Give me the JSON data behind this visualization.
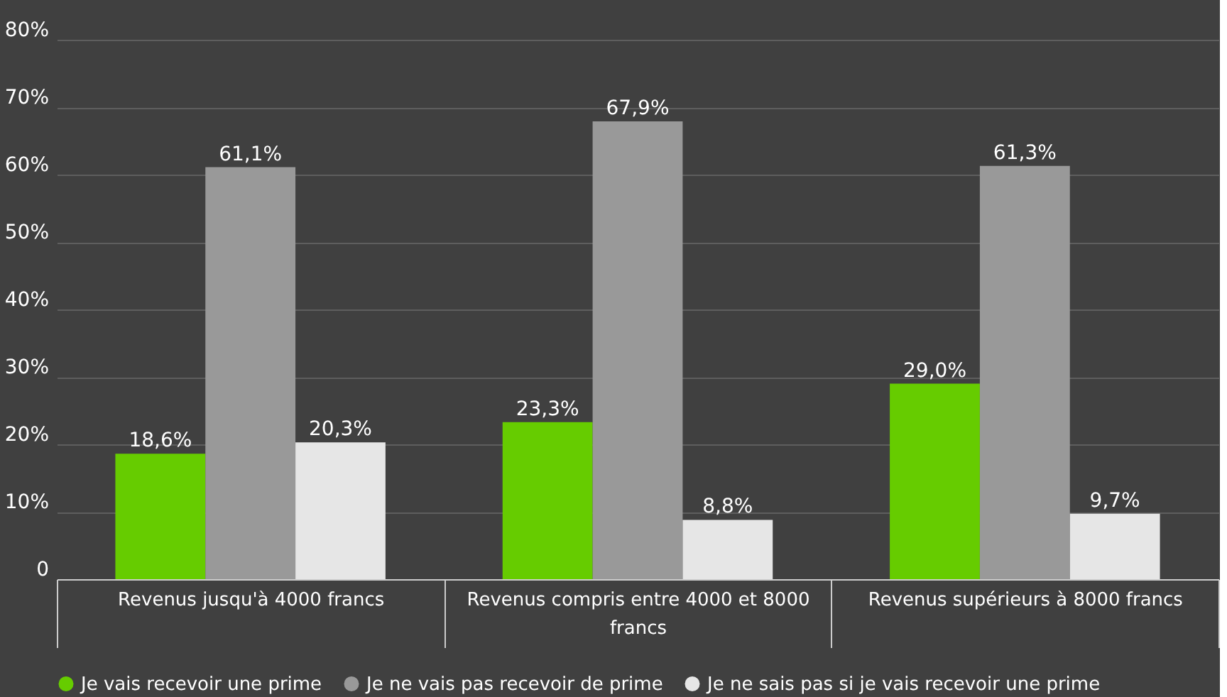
{
  "chart_data": {
    "type": "bar",
    "categories": [
      "Revenus jusqu'à 4000 francs",
      "Revenus compris entre 4000 et 8000 francs",
      "Revenus supérieurs à 8000 francs"
    ],
    "series": [
      {
        "name": "Je vais recevoir une prime",
        "color": "#66cc00",
        "values": [
          18.6,
          23.3,
          29.0
        ],
        "value_labels": [
          "18,6%",
          "23,3%",
          "29,0%"
        ]
      },
      {
        "name": "Je ne vais pas recevoir de prime",
        "color": "#999999",
        "values": [
          61.1,
          67.9,
          61.3
        ],
        "value_labels": [
          "61,1%",
          "67,9%",
          "61,3%"
        ]
      },
      {
        "name": "Je ne sais pas si je vais recevoir une prime",
        "color": "#e6e6e6",
        "values": [
          20.3,
          8.8,
          9.7
        ],
        "value_labels": [
          "20,3%",
          "8,8%",
          "9,7%"
        ]
      }
    ],
    "ylim": [
      0,
      80
    ],
    "yticks": [
      0,
      {
        "value": 10,
        "label": "10%"
      },
      {
        "value": 20,
        "label": "20%"
      },
      {
        "value": 30,
        "label": "30%"
      },
      {
        "value": 40,
        "label": "40%"
      },
      {
        "value": 50,
        "label": "50%"
      },
      {
        "value": 60,
        "label": "60%"
      },
      {
        "value": 70,
        "label": "70%"
      },
      {
        "value": 80,
        "label": "80%"
      }
    ],
    "grid": "y",
    "legend": "bottom"
  }
}
